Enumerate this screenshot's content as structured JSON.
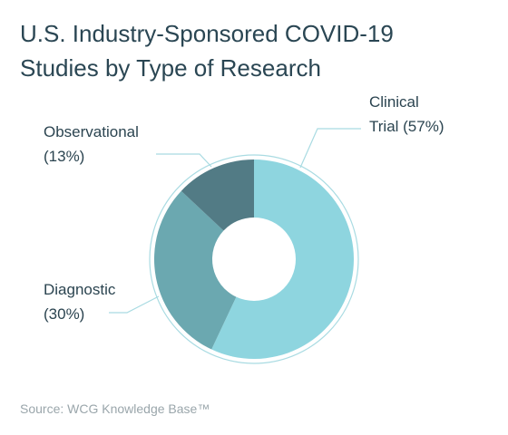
{
  "title": {
    "line1": "U.S. Industry-Sponsored COVID-19",
    "line2": "Studies by Type of Research"
  },
  "chart_data": {
    "type": "pie",
    "variant": "donut",
    "title": "U.S. Industry-Sponsored COVID-19 Studies by Type of Research",
    "categories": [
      "Clinical Trial",
      "Diagnostic",
      "Observational"
    ],
    "values": [
      57,
      30,
      13
    ],
    "unit": "%",
    "colors": [
      "#8ed5df",
      "#6ba8b0",
      "#527b85"
    ],
    "labels": [
      {
        "line1": "Clinical",
        "line2": "Trial (57%)"
      },
      {
        "line1": "Diagnostic",
        "line2": "(30%)"
      },
      {
        "line1": "Observational",
        "line2": "(13%)"
      }
    ]
  },
  "source": "Source: WCG Knowledge Base™"
}
